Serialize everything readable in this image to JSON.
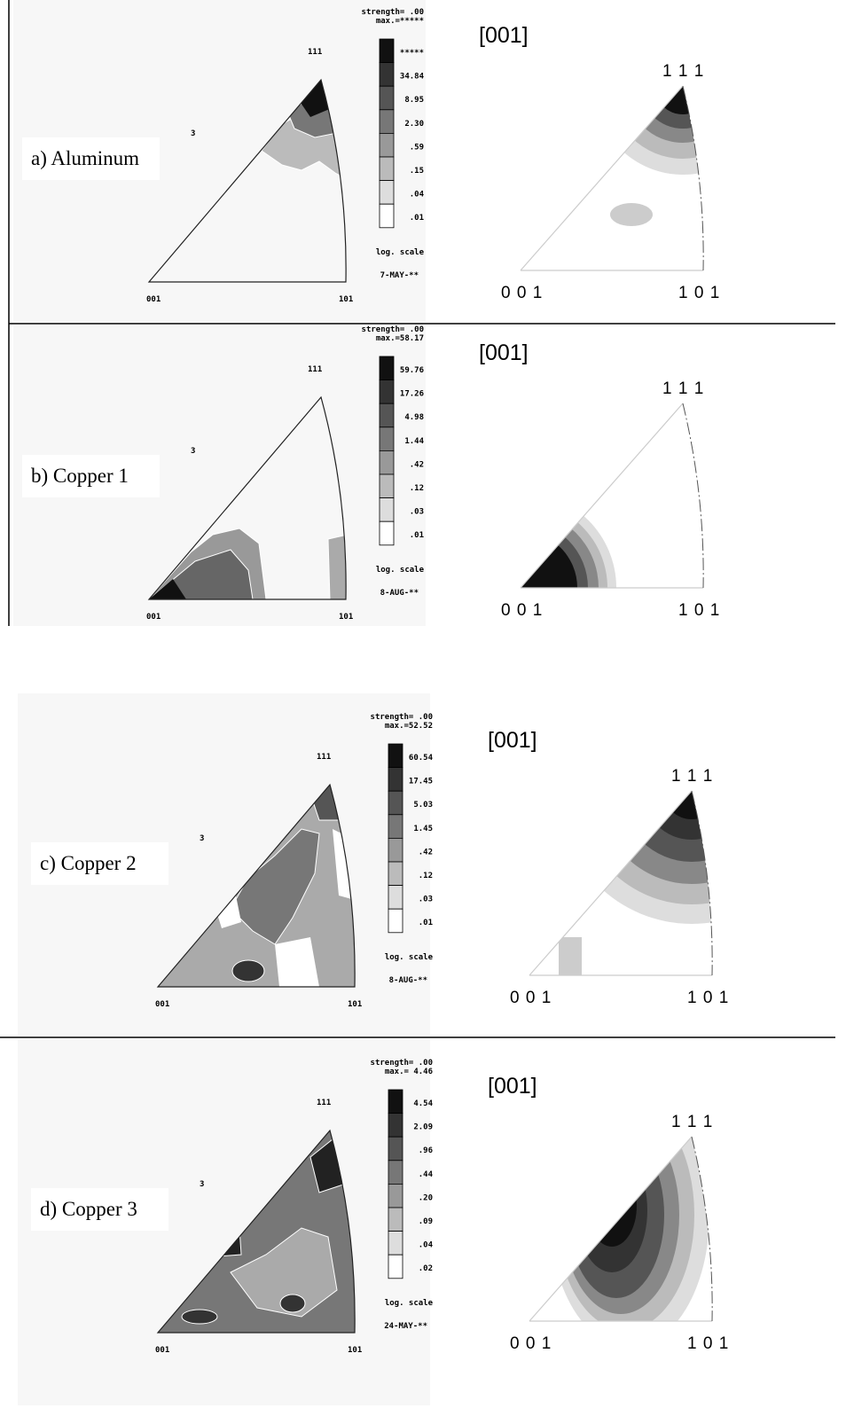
{
  "panels": [
    {
      "label": "a) Aluminum",
      "left": {
        "strength": "strength= .00",
        "max": "max.=*****",
        "levels": [
          "*****",
          "34.84",
          "8.95",
          "2.30",
          ".59",
          ".15",
          ".04",
          ".01"
        ],
        "scale": "log. scale",
        "date": "7-MAY-**",
        "corner_001": "001",
        "corner_101": "101",
        "corner_111": "111",
        "mark": "3"
      },
      "right": {
        "title": "[001]",
        "corner_111": "1 1 1",
        "corner_001": "0 0 1",
        "corner_101": "1 0 1"
      }
    },
    {
      "label": "b) Copper 1",
      "left": {
        "strength": "strength= .00",
        "max": "max.=58.17",
        "levels": [
          "59.76",
          "17.26",
          "4.98",
          "1.44",
          ".42",
          ".12",
          ".03",
          ".01"
        ],
        "scale": "log. scale",
        "date": "8-AUG-**",
        "corner_001": "001",
        "corner_101": "101",
        "corner_111": "111",
        "mark": "3"
      },
      "right": {
        "title": "[001]",
        "corner_111": "1 1 1",
        "corner_001": "0 0 1",
        "corner_101": "1 0 1"
      }
    },
    {
      "label": "c) Copper 2",
      "left": {
        "strength": "strength= .00",
        "max": "max.=52.52",
        "levels": [
          "60.54",
          "17.45",
          "5.03",
          "1.45",
          ".42",
          ".12",
          ".03",
          ".01"
        ],
        "scale": "log. scale",
        "date": "8-AUG-**",
        "corner_001": "001",
        "corner_101": "101",
        "corner_111": "111",
        "mark": "3"
      },
      "right": {
        "title": "[001]",
        "corner_111": "1 1 1",
        "corner_001": "0 0 1",
        "corner_101": "1 0 1"
      }
    },
    {
      "label": "d) Copper 3",
      "left": {
        "strength": "strength= .00",
        "max": "max.= 4.46",
        "levels": [
          "4.54",
          "2.09",
          ".96",
          ".44",
          ".20",
          ".09",
          ".04",
          ".02"
        ],
        "scale": "log. scale",
        "date": "24-MAY-**",
        "corner_001": "001",
        "corner_101": "101",
        "corner_111": "111",
        "mark": "3"
      },
      "right": {
        "title": "[001]",
        "corner_111": "1 1 1",
        "corner_001": "0 0 1",
        "corner_101": "1 0 1"
      }
    }
  ]
}
